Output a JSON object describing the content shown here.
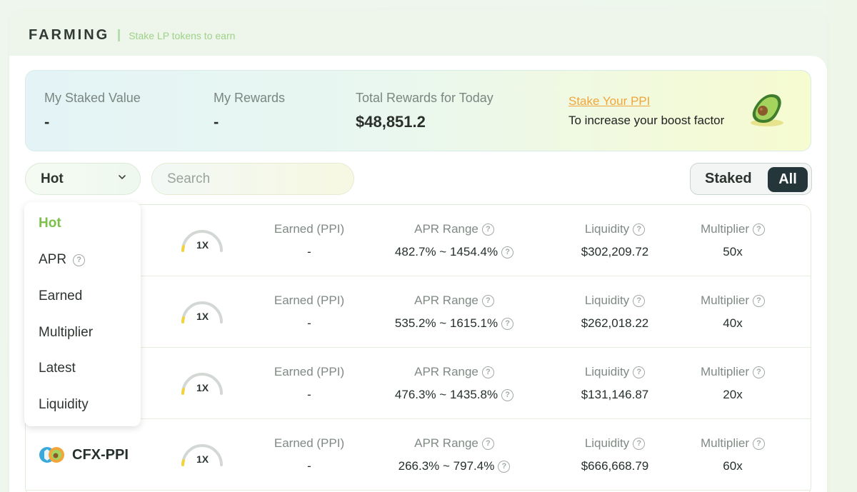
{
  "header": {
    "title": "FARMING",
    "subtitle": "Stake LP tokens to earn"
  },
  "stats": {
    "staked_label": "My Staked Value",
    "staked_value": "-",
    "rewards_label": "My Rewards",
    "rewards_value": "-",
    "today_label": "Total Rewards for Today",
    "today_value": "$48,851.2",
    "stake_link": "Stake Your PPI",
    "stake_sub": "To increase your boost factor"
  },
  "filters": {
    "sort_selected": "Hot",
    "search_placeholder": "Search",
    "toggle_staked": "Staked",
    "toggle_all": "All"
  },
  "sort_menu": {
    "items": [
      "Hot",
      "APR",
      "Earned",
      "Multiplier",
      "Latest",
      "Liquidity"
    ]
  },
  "columns": {
    "earned": "Earned (PPI)",
    "apr": "APR Range",
    "liquidity": "Liquidity",
    "multiplier": "Multiplier"
  },
  "farms": [
    {
      "pair": "",
      "boost": "1X",
      "earned": "-",
      "apr": "482.7% ~ 1454.4%",
      "liquidity": "$302,209.72",
      "multiplier": "50x"
    },
    {
      "pair": "",
      "boost": "1X",
      "earned": "-",
      "apr": "535.2% ~ 1615.1%",
      "liquidity": "$262,018.22",
      "multiplier": "40x"
    },
    {
      "pair": "",
      "boost": "1X",
      "earned": "-",
      "apr": "476.3% ~ 1435.8%",
      "liquidity": "$131,146.87",
      "multiplier": "20x"
    },
    {
      "pair": "CFX-PPI",
      "boost": "1X",
      "earned": "-",
      "apr": "266.3% ~ 797.4%",
      "liquidity": "$666,668.79",
      "multiplier": "60x"
    }
  ],
  "colors": {
    "accent_green": "#7cc04b",
    "link_orange": "#f0a63a",
    "dark_toggle": "#24363a"
  }
}
